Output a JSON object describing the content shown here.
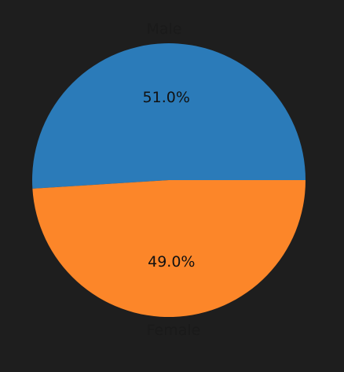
{
  "chart_data": {
    "type": "pie",
    "title": "",
    "start_angle_deg": 0,
    "direction": "counterclockwise",
    "slices": [
      {
        "label": "Male",
        "value": 51.0,
        "pct_label": "51.0%",
        "color": "#2b7bb9"
      },
      {
        "label": "Female",
        "value": 49.0,
        "pct_label": "49.0%",
        "color": "#fc8629"
      }
    ]
  }
}
